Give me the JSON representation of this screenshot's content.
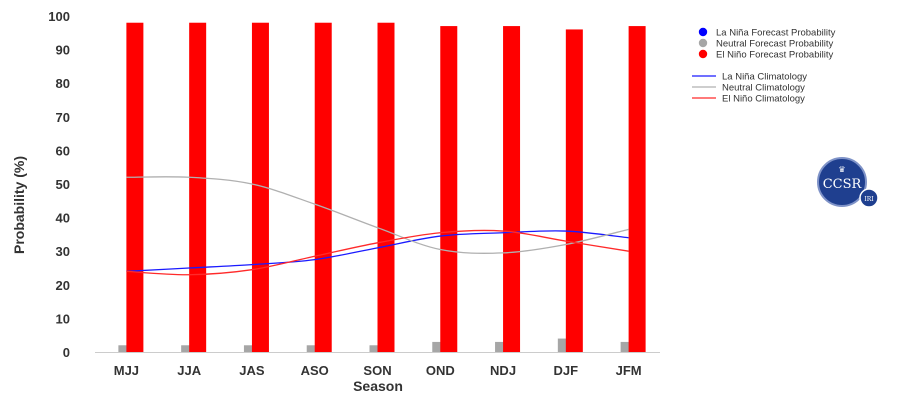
{
  "chart_data": {
    "type": "bar",
    "xlabel": "Season",
    "ylabel": "Probability (%)",
    "ylim": [
      0,
      100
    ],
    "yticks": [
      0,
      10,
      20,
      30,
      40,
      50,
      60,
      70,
      80,
      90,
      100
    ],
    "categories": [
      "MJJ",
      "JJA",
      "JAS",
      "ASO",
      "SON",
      "OND",
      "NDJ",
      "DJF",
      "JFM"
    ],
    "series": [
      {
        "name": "La Niña Forecast Probability",
        "kind": "bar",
        "color": "#0000ff",
        "values": [
          0,
          0,
          0,
          0,
          0,
          0,
          0,
          0,
          0
        ]
      },
      {
        "name": "Neutral Forecast Probability",
        "kind": "bar",
        "color": "#a6a6a6",
        "values": [
          2,
          2,
          2,
          2,
          2,
          3,
          3,
          4,
          3
        ]
      },
      {
        "name": "El Niño Forecast Probability",
        "kind": "bar",
        "color": "#ff0000",
        "values": [
          98,
          98,
          98,
          98,
          98,
          97,
          97,
          96,
          97
        ]
      },
      {
        "name": "La Niña Climatology",
        "kind": "line",
        "color": "#1a1aff",
        "values": [
          24,
          25,
          26,
          27.5,
          31,
          34.5,
          35.5,
          36,
          34
        ]
      },
      {
        "name": "Neutral Climatology",
        "kind": "line",
        "color": "#b0b0b0",
        "values": [
          52,
          52,
          50,
          44,
          37,
          30.5,
          29.5,
          32,
          36.5
        ]
      },
      {
        "name": "El Niño Climatology",
        "kind": "line",
        "color": "#ff2a2a",
        "values": [
          24,
          23,
          24.5,
          28.5,
          32.5,
          35.5,
          36,
          33,
          30
        ]
      }
    ],
    "legend_position": "top-right",
    "grid": false
  },
  "logo": {
    "main": "CCSR",
    "secondary": "IRI"
  }
}
